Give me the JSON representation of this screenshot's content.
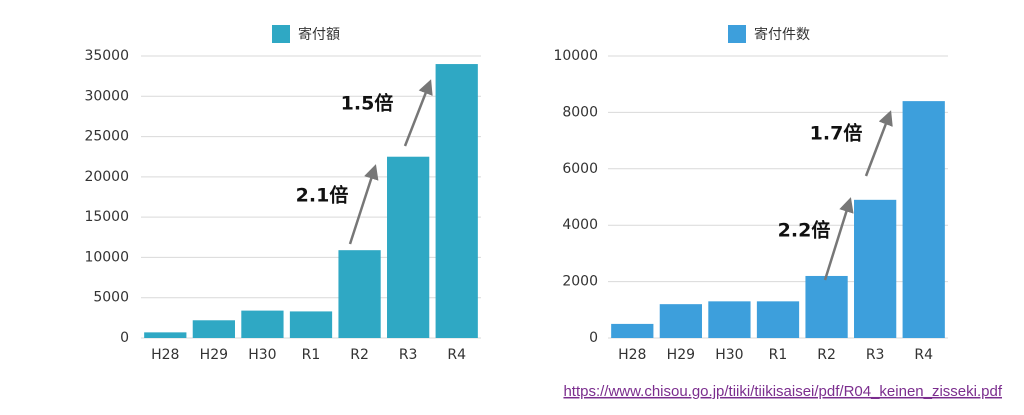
{
  "chart_data": [
    {
      "type": "bar",
      "legend": "寄付額",
      "color": "#2fa8c4",
      "categories": [
        "H28",
        "H29",
        "H30",
        "R1",
        "R2",
        "R3",
        "R4"
      ],
      "values": [
        700,
        2200,
        3400,
        3300,
        10900,
        22500,
        34000
      ],
      "ylim": [
        0,
        35000
      ],
      "yticks": [
        0,
        5000,
        10000,
        15000,
        20000,
        25000,
        30000,
        35000
      ],
      "grid": true,
      "annotations": [
        "2.1倍",
        "1.5倍"
      ]
    },
    {
      "type": "bar",
      "legend": "寄付件数",
      "color": "#3d9fdc",
      "categories": [
        "H28",
        "H29",
        "H30",
        "R1",
        "R2",
        "R3",
        "R4"
      ],
      "values": [
        500,
        1200,
        1300,
        1300,
        2200,
        4900,
        8400
      ],
      "ylim": [
        0,
        10000
      ],
      "yticks": [
        0,
        2000,
        4000,
        6000,
        8000,
        10000
      ],
      "grid": true,
      "annotations": [
        "2.2倍",
        "1.7倍"
      ]
    }
  ],
  "source_link": "https://www.chisou.go.jp/tiiki/tiikisaisei/pdf/R04_keinen_zisseki.pdf"
}
